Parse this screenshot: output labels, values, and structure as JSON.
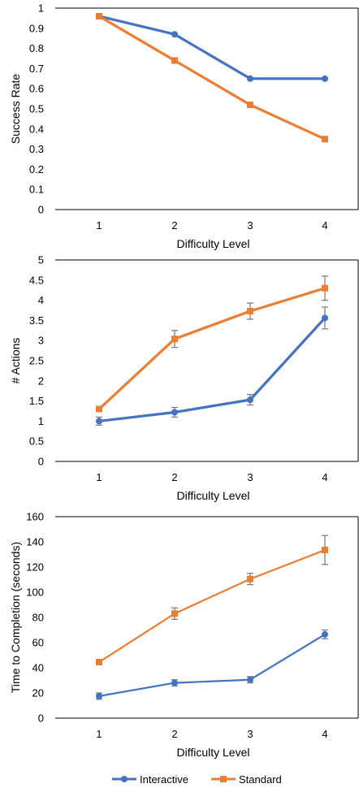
{
  "colors": {
    "interactive": "#4472C4",
    "standard": "#ED7D31",
    "errorbar": "#7F7F7F",
    "axis": "#000000"
  },
  "legend": {
    "placement": "bottom-center",
    "items": [
      {
        "label": "Interactive",
        "marker": "circle",
        "color": "#4472C4"
      },
      {
        "label": "Standard",
        "marker": "square",
        "color": "#ED7D31"
      }
    ]
  },
  "chart_data": [
    {
      "type": "line",
      "xlabel": "Difficulty Level",
      "ylabel": "Success Rate",
      "x": [
        1,
        2,
        3,
        4
      ],
      "ylim": [
        0,
        1
      ],
      "yticks": [
        "0",
        "0.1",
        "0.2",
        "0.3",
        "0.4",
        "0.5",
        "0.6",
        "0.7",
        "0.8",
        "0.9",
        "1"
      ],
      "grid": false,
      "series": [
        {
          "name": "Interactive",
          "values": [
            0.96,
            0.87,
            0.65,
            0.65
          ]
        },
        {
          "name": "Standard",
          "values": [
            0.96,
            0.74,
            0.52,
            0.35
          ]
        }
      ]
    },
    {
      "type": "line",
      "xlabel": "Difficulty Level",
      "ylabel": "# Actions",
      "x": [
        1,
        2,
        3,
        4
      ],
      "ylim": [
        0,
        5
      ],
      "yticks": [
        "0",
        "0.5",
        "1",
        "1.5",
        "2",
        "2.5",
        "3",
        "3.5",
        "4",
        "4.5",
        "5"
      ],
      "grid": false,
      "series": [
        {
          "name": "Interactive",
          "values": [
            1.0,
            1.22,
            1.53,
            3.56
          ],
          "error": [
            0.1,
            0.12,
            0.13,
            0.27
          ]
        },
        {
          "name": "Standard",
          "values": [
            1.3,
            3.04,
            3.73,
            4.3
          ],
          "error": [
            0.03,
            0.21,
            0.2,
            0.3
          ]
        }
      ]
    },
    {
      "type": "line",
      "xlabel": "Difficulty Level",
      "ylabel": "Time to Completion (seconds)",
      "x": [
        1,
        2,
        3,
        4
      ],
      "ylim": [
        0,
        160
      ],
      "yticks": [
        "0",
        "20",
        "40",
        "60",
        "80",
        "100",
        "120",
        "140",
        "160"
      ],
      "grid": false,
      "series": [
        {
          "name": "Interactive",
          "values": [
            17.5,
            28,
            30.5,
            66.5
          ],
          "error": [
            2.5,
            2.5,
            2.5,
            3.5
          ]
        },
        {
          "name": "Standard",
          "values": [
            44.5,
            83,
            110.5,
            133.5
          ],
          "error": [
            1.5,
            4.5,
            4.5,
            11.5
          ]
        }
      ]
    }
  ]
}
